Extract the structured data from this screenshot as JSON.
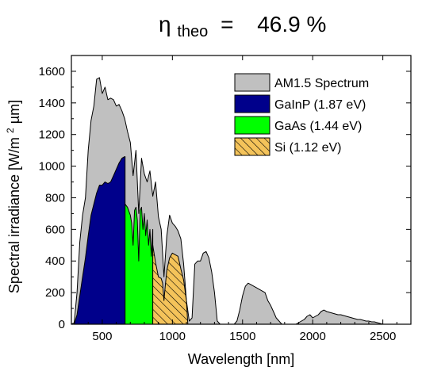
{
  "header": {
    "eta_symbol": "η",
    "eta_subscript": "theo",
    "equals": "=",
    "value": "46.9 %"
  },
  "chart_data": {
    "type": "area",
    "xlabel": "Wavelength [nm]",
    "ylabel": {
      "prefix": "Spectral irradiance [W/m",
      "superscript": "2",
      "suffix": "µm]"
    },
    "xlim": [
      280,
      2700
    ],
    "ylim": [
      0,
      1700
    ],
    "x_ticks": [
      500,
      1000,
      1500,
      2000,
      2500
    ],
    "y_ticks": [
      0,
      200,
      400,
      600,
      800,
      1000,
      1200,
      1400,
      1600
    ],
    "grid": false,
    "legend_position": "top-right",
    "series": [
      {
        "name": "AM1.5 Spectrum",
        "color": "#c0c0c0",
        "pattern": "solid",
        "x": [
          280,
          300,
          320,
          340,
          360,
          380,
          400,
          420,
          440,
          460,
          480,
          500,
          520,
          540,
          560,
          580,
          600,
          620,
          640,
          660,
          680,
          700,
          720,
          740,
          760,
          780,
          800,
          820,
          840,
          860,
          880,
          900,
          920,
          940,
          960,
          980,
          1000,
          1020,
          1040,
          1060,
          1080,
          1100,
          1120,
          1140,
          1160,
          1180,
          1200,
          1220,
          1240,
          1260,
          1280,
          1300,
          1320,
          1340,
          1360,
          1380,
          1400,
          1420,
          1440,
          1460,
          1480,
          1500,
          1520,
          1540,
          1560,
          1580,
          1600,
          1620,
          1640,
          1660,
          1680,
          1700,
          1720,
          1740,
          1760,
          1780,
          1800,
          1820,
          1840,
          1860,
          1880,
          1900,
          1920,
          1940,
          1960,
          1980,
          2000,
          2020,
          2040,
          2060,
          2080,
          2100,
          2120,
          2140,
          2160,
          2180,
          2200,
          2220,
          2240,
          2260,
          2280,
          2300,
          2320,
          2340,
          2360,
          2380,
          2400,
          2420,
          2440,
          2460,
          2480,
          2500,
          2520,
          2540,
          2560
        ],
        "y": [
          0,
          10,
          200,
          520,
          690,
          800,
          1100,
          1290,
          1380,
          1550,
          1560,
          1460,
          1500,
          1420,
          1430,
          1420,
          1380,
          1390,
          1350,
          1300,
          1220,
          1150,
          940,
          1100,
          700,
          1050,
          950,
          900,
          970,
          810,
          900,
          680,
          600,
          300,
          560,
          690,
          640,
          620,
          590,
          540,
          380,
          150,
          20,
          40,
          380,
          400,
          400,
          450,
          460,
          420,
          330,
          200,
          20,
          0,
          0,
          0,
          0,
          0,
          0,
          20,
          90,
          180,
          240,
          260,
          250,
          240,
          230,
          220,
          210,
          200,
          150,
          120,
          80,
          40,
          20,
          0,
          0,
          0,
          0,
          0,
          0,
          10,
          20,
          30,
          50,
          60,
          40,
          50,
          60,
          80,
          90,
          80,
          75,
          70,
          65,
          60,
          60,
          55,
          50,
          45,
          40,
          35,
          30,
          30,
          25,
          20,
          20,
          15,
          15,
          10,
          5,
          0,
          0,
          0,
          0
        ]
      },
      {
        "name": "GaInP (1.87 eV)",
        "color": "#00008b",
        "pattern": "solid",
        "x": [
          300,
          320,
          340,
          360,
          380,
          400,
          420,
          440,
          460,
          480,
          500,
          520,
          540,
          560,
          580,
          600,
          620,
          640,
          660,
          663
        ],
        "y": [
          0,
          60,
          180,
          300,
          420,
          560,
          690,
          760,
          830,
          880,
          880,
          900,
          890,
          900,
          940,
          980,
          1020,
          1050,
          1060,
          1060
        ]
      },
      {
        "name": "GaAs (1.44 eV)",
        "color": "#00ff00",
        "pattern": "solid",
        "x": [
          663,
          680,
          700,
          710,
          720,
          730,
          740,
          750,
          760,
          770,
          780,
          790,
          800,
          810,
          820,
          830,
          840,
          850,
          860
        ],
        "y": [
          760,
          740,
          690,
          640,
          500,
          720,
          740,
          660,
          400,
          720,
          740,
          600,
          700,
          560,
          660,
          500,
          600,
          430,
          600
        ]
      },
      {
        "name": "Si (1.12 eV)",
        "color": "#f4c35a",
        "pattern": "hatch",
        "x": [
          860,
          880,
          900,
          920,
          930,
          940,
          950,
          960,
          980,
          1000,
          1020,
          1040,
          1060,
          1080,
          1100,
          1110
        ],
        "y": [
          500,
          390,
          300,
          290,
          260,
          150,
          250,
          340,
          420,
          450,
          440,
          430,
          350,
          280,
          150,
          0
        ]
      }
    ]
  }
}
